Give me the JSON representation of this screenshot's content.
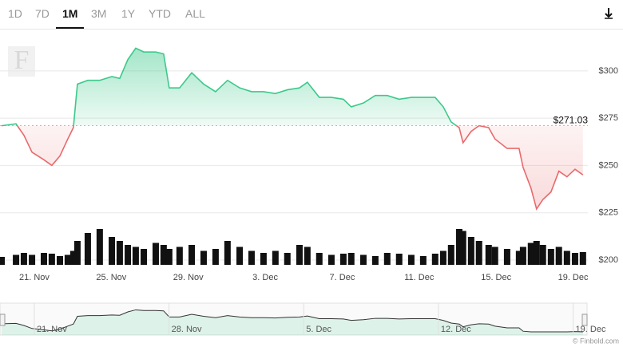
{
  "range_buttons": [
    "1D",
    "7D",
    "1M",
    "3M",
    "1Y",
    "YTD",
    "ALL"
  ],
  "selected_range": "1M",
  "watermark": "F",
  "credit": "© Finbold.com",
  "chart_data": {
    "type": "line",
    "x": [
      19.3,
      20.05,
      20.46,
      20.88,
      21.5,
      21.91,
      22.33,
      22.74,
      23.03,
      23.24,
      23.78,
      24.4,
      25.03,
      25.44,
      25.86,
      26.27,
      26.69,
      27.31,
      27.72,
      28.01,
      28.55,
      29.18,
      29.8,
      30.42,
      31.04,
      31.67,
      32.29,
      32.91,
      33.53,
      34.15,
      34.78,
      35.19,
      35.81,
      36.44,
      37.06,
      37.47,
      38.1,
      38.72,
      39.34,
      39.96,
      40.59,
      41.21,
      41.83,
      42.25,
      42.66,
      43.08,
      43.28,
      43.7,
      44.11,
      44.61,
      44.94,
      45.57,
      46.19,
      46.4,
      46.81,
      47.1,
      47.43,
      47.85,
      48.26,
      48.68,
      49.1,
      49.51
    ],
    "series": [
      {
        "values": [
          271,
          272,
          266,
          257,
          253,
          250,
          255,
          264,
          270,
          293,
          295,
          295,
          297,
          296,
          306,
          312,
          310,
          310,
          309,
          291,
          291,
          299,
          293,
          289,
          295,
          291,
          289,
          289,
          288,
          290,
          291,
          294,
          286,
          286,
          285,
          281,
          283,
          287,
          287,
          285,
          286,
          286,
          286,
          281,
          273,
          270,
          262,
          268,
          271,
          270,
          264,
          259,
          259,
          249,
          238,
          227,
          232,
          236,
          247,
          244,
          248,
          245
        ],
        "color_up": "#3cc98a",
        "color_down": "#e8696b"
      }
    ],
    "baseline": {
      "value": 271.03,
      "label": "$271.03"
    },
    "xlim": [
      19.3,
      49.6
    ],
    "xticks": [
      {
        "value": 21,
        "label": "21. Nov"
      },
      {
        "value": 25,
        "label": "25. Nov"
      },
      {
        "value": 29,
        "label": "29. Nov"
      },
      {
        "value": 33,
        "label": "3. Dec"
      },
      {
        "value": 37,
        "label": "7. Dec"
      },
      {
        "value": 41,
        "label": "11. Dec"
      },
      {
        "value": 45,
        "label": "15. Dec"
      },
      {
        "value": 49,
        "label": "19. Dec"
      }
    ],
    "ylim": [
      200,
      320.6
    ],
    "yticks": [
      {
        "value": 200,
        "label": "$200"
      },
      {
        "value": 225,
        "label": "$225"
      },
      {
        "value": 250,
        "label": "$250"
      },
      {
        "value": 275,
        "label": "$275"
      },
      {
        "value": 300,
        "label": "$300"
      }
    ],
    "grid": true,
    "volume": {
      "values": [
        20,
        25,
        30,
        25,
        30,
        28,
        22,
        25,
        35,
        60,
        80,
        90,
        70,
        60,
        50,
        45,
        40,
        55,
        50,
        40,
        45,
        50,
        35,
        40,
        60,
        45,
        35,
        30,
        35,
        30,
        50,
        45,
        30,
        25,
        28,
        30,
        25,
        22,
        30,
        28,
        25,
        22,
        28,
        35,
        50,
        90,
        85,
        70,
        60,
        50,
        45,
        40,
        35,
        45,
        55,
        60,
        50,
        40,
        45,
        35,
        30,
        32
      ],
      "ylim": [
        0,
        100
      ],
      "color": "#111111"
    },
    "navigator": {
      "xticks": [
        {
          "value": 21,
          "label": "21. Nov"
        },
        {
          "value": 28,
          "label": "28. Nov"
        },
        {
          "value": 35,
          "label": "5. Dec"
        },
        {
          "value": 42,
          "label": "12. Dec"
        },
        {
          "value": 49,
          "label": "19. Dec"
        }
      ]
    }
  }
}
